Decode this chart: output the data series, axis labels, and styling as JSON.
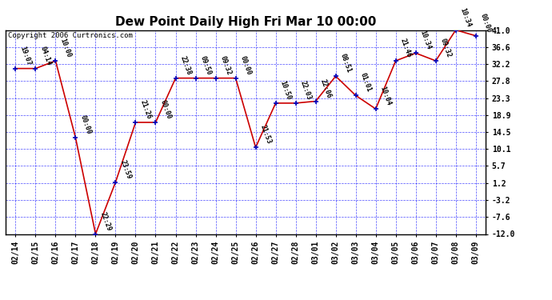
{
  "title": "Dew Point Daily High Fri Mar 10 00:00",
  "copyright": "Copyright 2006 Curtronics.com",
  "background_color": "#ffffff",
  "plot_bg_color": "#ffffff",
  "grid_color": "#0000ff",
  "line_color": "#cc0000",
  "marker_color": "#0000bb",
  "dates": [
    "02/14",
    "02/15",
    "02/16",
    "02/17",
    "02/18",
    "02/19",
    "02/20",
    "02/21",
    "02/22",
    "02/23",
    "02/24",
    "02/25",
    "02/26",
    "02/27",
    "02/28",
    "03/01",
    "03/02",
    "03/03",
    "03/04",
    "03/05",
    "03/06",
    "03/07",
    "03/08",
    "03/09"
  ],
  "values": [
    31.0,
    31.0,
    33.0,
    13.0,
    -12.0,
    1.5,
    17.0,
    17.0,
    28.5,
    28.5,
    28.5,
    28.5,
    10.5,
    22.0,
    22.0,
    22.5,
    29.0,
    24.0,
    20.5,
    33.0,
    35.0,
    33.0,
    41.0,
    39.5
  ],
  "labels": [
    "19:07",
    "04:14",
    "10:00",
    "00:00",
    "22:29",
    "23:59",
    "21:26",
    "00:00",
    "22:38",
    "09:50",
    "09:32",
    "00:00",
    "21:53",
    "10:50",
    "22:03",
    "22:06",
    "08:51",
    "01:01",
    "10:04",
    "21:46",
    "10:34",
    "09:32",
    "10:34",
    "00:00"
  ],
  "ylim": [
    -12.0,
    41.0
  ],
  "yticks": [
    -12.0,
    -7.6,
    -3.2,
    1.2,
    5.7,
    10.1,
    14.5,
    18.9,
    23.3,
    27.8,
    32.2,
    36.6,
    41.0
  ],
  "title_fontsize": 11,
  "label_fontsize": 6.0,
  "tick_fontsize": 7,
  "copyright_fontsize": 6.5
}
